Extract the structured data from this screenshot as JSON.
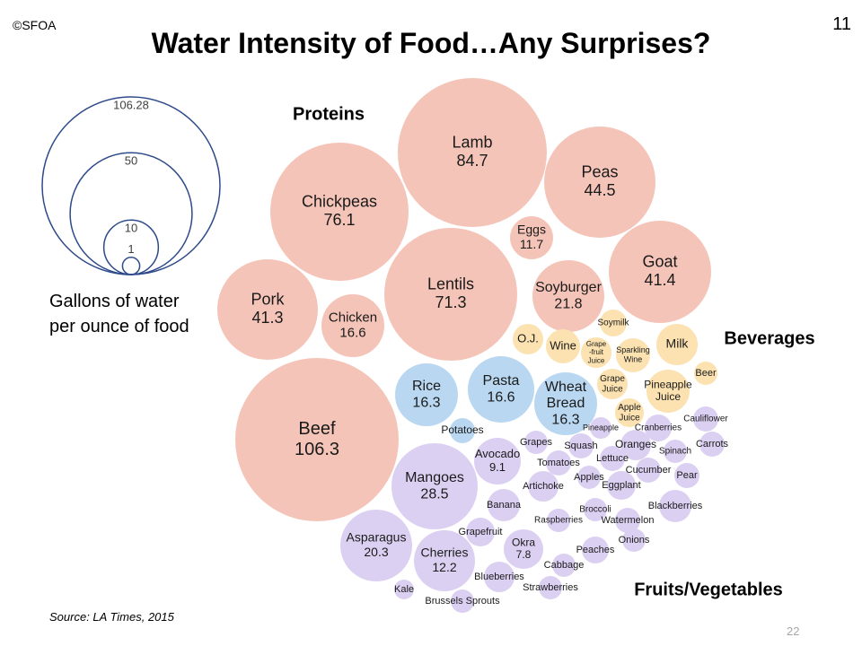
{
  "slide": {
    "copyright": "©SFOA",
    "slide_number": "11",
    "title": "Water Intensity of Food…Any Surprises?",
    "source": "Source: LA Times, 2015",
    "page_number": "22"
  },
  "legend": {
    "caption_line1": "Gallons of water",
    "caption_line2": "per ounce of food",
    "ring_values": [
      106.28,
      50,
      10,
      1
    ],
    "ring_labels": [
      "106.28",
      "50",
      "10",
      "1"
    ],
    "ring_color": "#2e4a8a"
  },
  "colors": {
    "proteins": "#f5c4b8",
    "grains": "#b9d7f0",
    "beverages": "#fbe2b0",
    "fruits_vegetables": "#dcd0f2"
  },
  "chart_data": {
    "type": "bubble",
    "title": "Water Intensity of Food…Any Surprises?",
    "unit": "Gallons of water per ounce of food",
    "groups": [
      {
        "name": "Proteins",
        "label": "Proteins",
        "color_key": "proteins",
        "items": [
          {
            "name": "Lamb",
            "value": 84.7,
            "label": "84.7"
          },
          {
            "name": "Chickpeas",
            "value": 76.1,
            "label": "76.1"
          },
          {
            "name": "Peas",
            "value": 44.5,
            "label": "44.5"
          },
          {
            "name": "Eggs",
            "value": 11.7,
            "label": "11.7"
          },
          {
            "name": "Lentils",
            "value": 71.3,
            "label": "71.3"
          },
          {
            "name": "Goat",
            "value": 41.4,
            "label": "41.4"
          },
          {
            "name": "Pork",
            "value": 41.3,
            "label": "41.3"
          },
          {
            "name": "Chicken",
            "value": 16.6,
            "label": "16.6"
          },
          {
            "name": "Soyburger",
            "value": 21.8,
            "label": "21.8"
          },
          {
            "name": "Beef",
            "value": 106.3,
            "label": "106.3"
          }
        ]
      },
      {
        "name": "Grains",
        "label": "",
        "color_key": "grains",
        "items": [
          {
            "name": "Rice",
            "value": 16.3,
            "label": "16.3"
          },
          {
            "name": "Pasta",
            "value": 16.6,
            "label": "16.6"
          },
          {
            "name": "Wheat Bread",
            "value": 16.3,
            "label": "16.3"
          },
          {
            "name": "Potatoes",
            "value": null,
            "label": ""
          }
        ]
      },
      {
        "name": "Beverages",
        "label": "Beverages",
        "color_key": "beverages",
        "items": [
          {
            "name": "Soymilk",
            "value": null,
            "label": ""
          },
          {
            "name": "O.J.",
            "value": null,
            "label": ""
          },
          {
            "name": "Wine",
            "value": null,
            "label": ""
          },
          {
            "name": "Grape -fruit Juice",
            "value": null,
            "label": ""
          },
          {
            "name": "Sparkling Wine",
            "value": null,
            "label": ""
          },
          {
            "name": "Milk",
            "value": null,
            "label": ""
          },
          {
            "name": "Beer",
            "value": null,
            "label": ""
          },
          {
            "name": "Grape Juice",
            "value": null,
            "label": ""
          },
          {
            "name": "Pineapple Juice",
            "value": null,
            "label": ""
          },
          {
            "name": "Apple Juice",
            "value": null,
            "label": ""
          }
        ]
      },
      {
        "name": "Fruits/Vegetables",
        "label": "Fruits/Vegetables",
        "color_key": "fruits_vegetables",
        "items": [
          {
            "name": "Mangoes",
            "value": 28.5,
            "label": "28.5"
          },
          {
            "name": "Asparagus",
            "value": 20.3,
            "label": "20.3"
          },
          {
            "name": "Cherries",
            "value": 12.2,
            "label": "12.2"
          },
          {
            "name": "Avocado",
            "value": 9.1,
            "label": "9.1"
          },
          {
            "name": "Okra",
            "value": 7.8,
            "label": "7.8"
          },
          {
            "name": "Grapes",
            "value": null,
            "label": ""
          },
          {
            "name": "Squash",
            "value": null,
            "label": ""
          },
          {
            "name": "Oranges",
            "value": null,
            "label": ""
          },
          {
            "name": "Tomatoes",
            "value": null,
            "label": ""
          },
          {
            "name": "Lettuce",
            "value": null,
            "label": ""
          },
          {
            "name": "Artichoke",
            "value": null,
            "label": ""
          },
          {
            "name": "Apples",
            "value": null,
            "label": ""
          },
          {
            "name": "Eggplant",
            "value": null,
            "label": ""
          },
          {
            "name": "Cucumber",
            "value": null,
            "label": ""
          },
          {
            "name": "Pear",
            "value": null,
            "label": ""
          },
          {
            "name": "Banana",
            "value": null,
            "label": ""
          },
          {
            "name": "Broccoli",
            "value": null,
            "label": ""
          },
          {
            "name": "Blackberries",
            "value": null,
            "label": ""
          },
          {
            "name": "Raspberries",
            "value": null,
            "label": ""
          },
          {
            "name": "Watermelon",
            "value": null,
            "label": ""
          },
          {
            "name": "Grapefruit",
            "value": null,
            "label": ""
          },
          {
            "name": "Onions",
            "value": null,
            "label": ""
          },
          {
            "name": "Peaches",
            "value": null,
            "label": ""
          },
          {
            "name": "Cabbage",
            "value": null,
            "label": ""
          },
          {
            "name": "Blueberries",
            "value": null,
            "label": ""
          },
          {
            "name": "Strawberries",
            "value": null,
            "label": ""
          },
          {
            "name": "Kale",
            "value": null,
            "label": ""
          },
          {
            "name": "Brussels Sprouts",
            "value": null,
            "label": ""
          },
          {
            "name": "Pineapple",
            "value": null,
            "label": ""
          },
          {
            "name": "Cranberries",
            "value": null,
            "label": ""
          },
          {
            "name": "Cauliflower",
            "value": null,
            "label": ""
          },
          {
            "name": "Spinach",
            "value": null,
            "label": ""
          },
          {
            "name": "Carrots",
            "value": null,
            "label": ""
          }
        ]
      }
    ]
  }
}
